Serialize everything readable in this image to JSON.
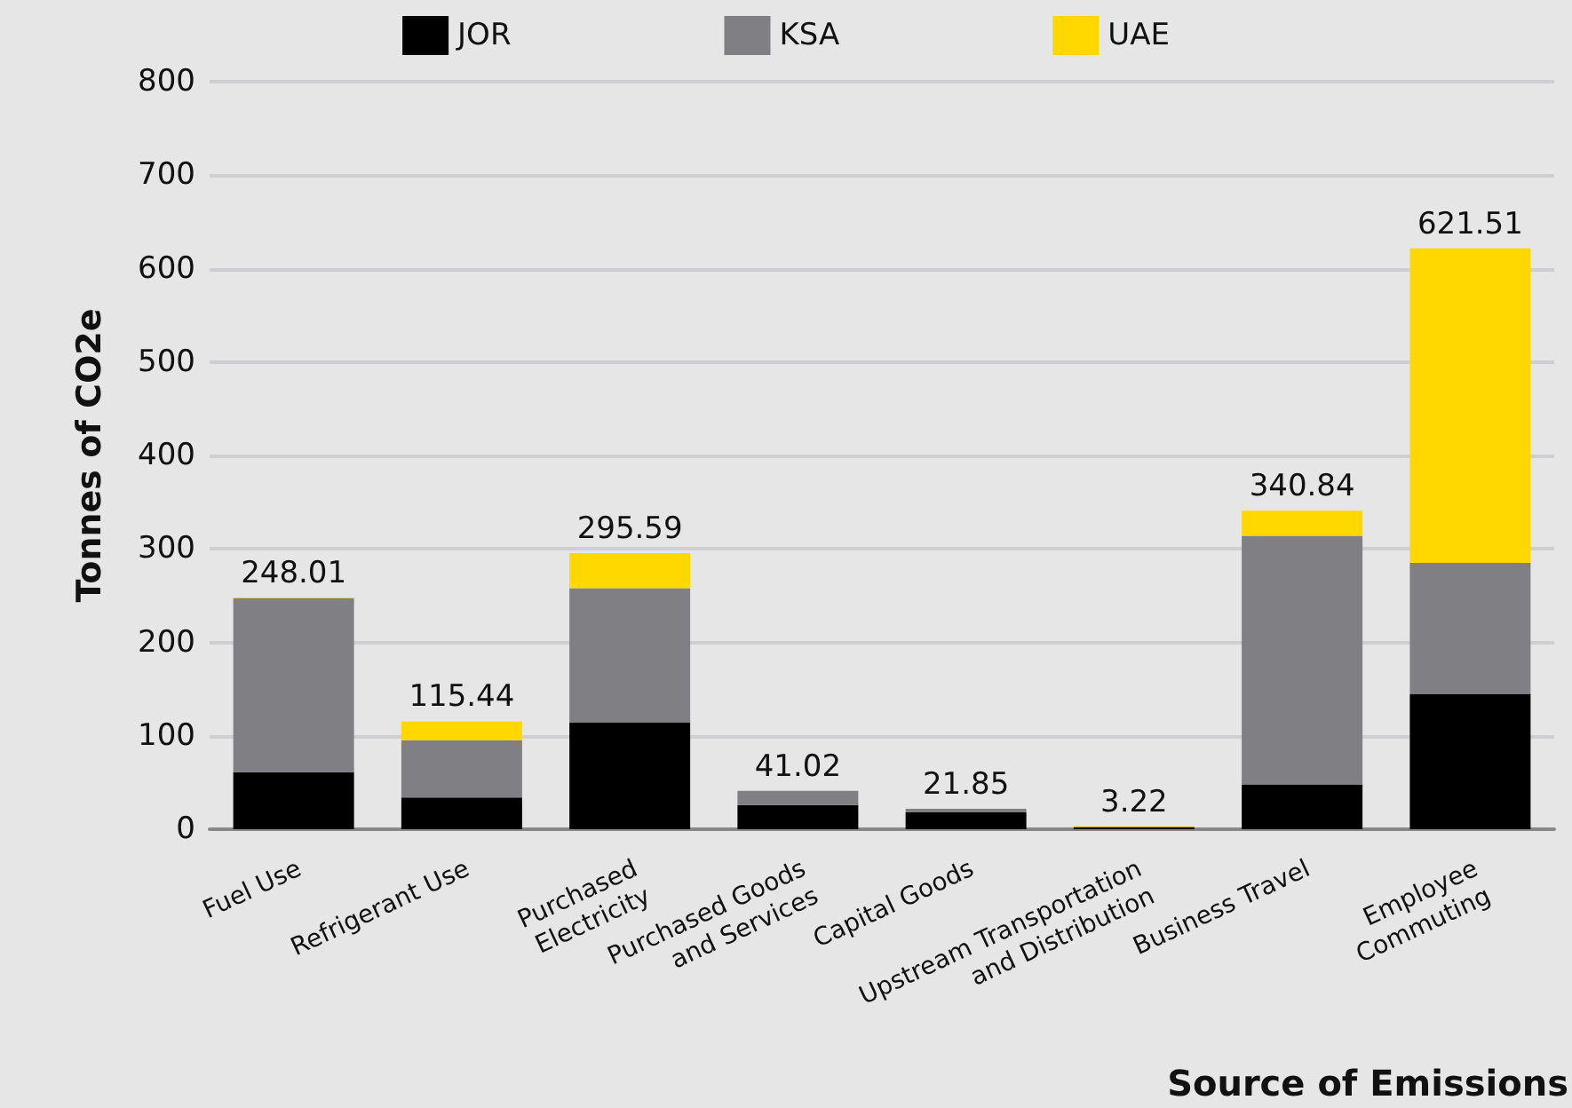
{
  "chart_data": {
    "type": "bar",
    "stacked": true,
    "ylabel": "Tonnes of CO2e",
    "xlabel": "Source of Emissions",
    "categories": [
      "Fuel Use",
      "Refrigerant Use",
      "Purchased\nElectricity",
      "Purchased Goods\nand Services",
      "Capital Goods",
      "Upstream Transportation\nand Distribution",
      "Business Travel",
      "Employee\nCommuting"
    ],
    "series": [
      {
        "name": "JOR",
        "color": "#000000",
        "values": [
          61,
          34,
          114,
          26,
          18,
          2,
          48,
          145
        ]
      },
      {
        "name": "KSA",
        "color": "#808084",
        "values": [
          186,
          61,
          144,
          15.02,
          3.85,
          0.5,
          266,
          140
        ]
      },
      {
        "name": "UAE",
        "color": "#ffd800",
        "values": [
          1.01,
          20.44,
          37.59,
          0,
          0,
          0.72,
          26.84,
          336.51
        ]
      }
    ],
    "totals": [
      "248.01",
      "115.44",
      "295.59",
      "41.02",
      "21.85",
      "3.22",
      "340.84",
      "621.51"
    ],
    "ylim": [
      0,
      800
    ],
    "yticks": [
      0,
      100,
      200,
      300,
      400,
      500,
      600,
      700,
      800
    ],
    "grid": "y",
    "legend": "top"
  }
}
